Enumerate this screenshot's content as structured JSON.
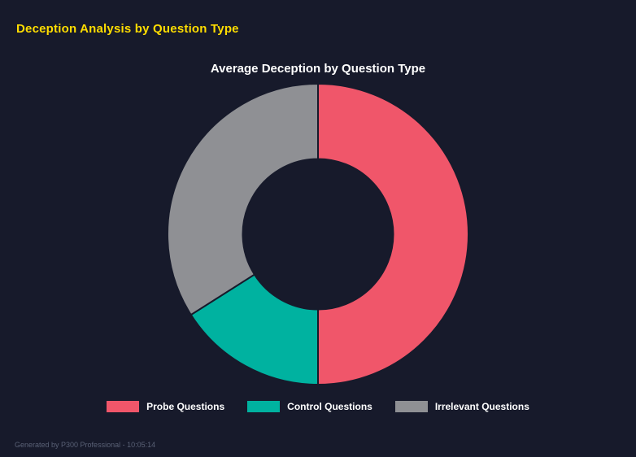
{
  "page": {
    "header": "Deception Analysis by Question Type",
    "header_color": "#ffdd00",
    "background": "#171a2b",
    "footer": "Generated by P300 Professional - 10:05:14"
  },
  "chart_data": {
    "type": "pie",
    "subtype": "donut",
    "title": "Average Deception by Question Type",
    "categories": [
      "Probe Questions",
      "Control Questions",
      "Irrelevant Questions"
    ],
    "values": [
      50,
      16,
      34
    ],
    "units": "percent",
    "colors": [
      "#f0566a",
      "#00b2a0",
      "#8f9094"
    ],
    "cutout_percent": 50,
    "start_angle_deg": 0,
    "legend_position": "bottom",
    "background": "#171a2b",
    "segment_border_color": "#171a2b"
  }
}
